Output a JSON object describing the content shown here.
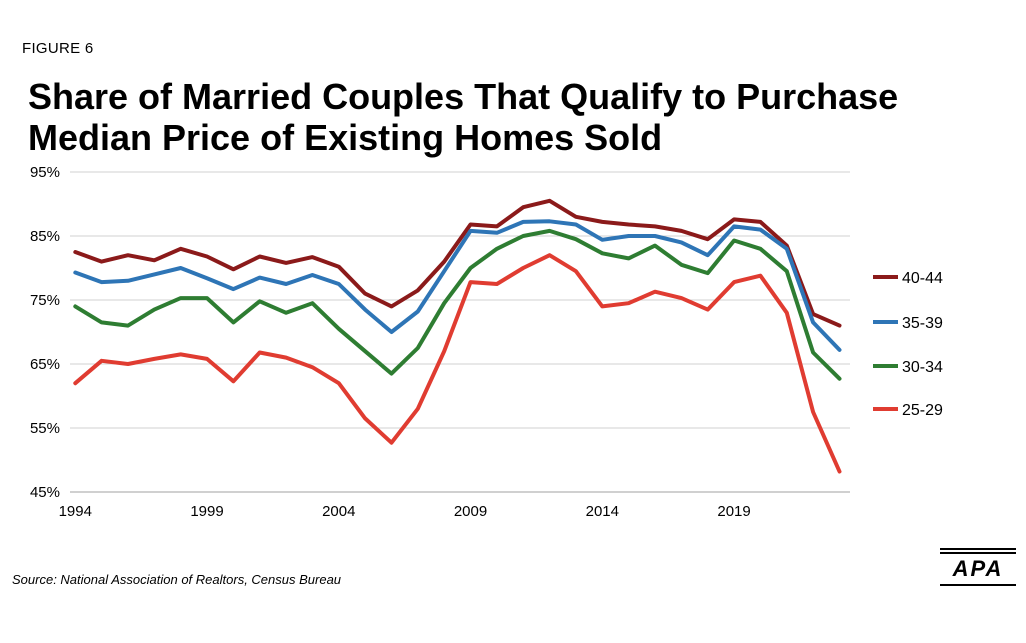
{
  "figure_label": "FIGURE 6",
  "title_line1": "Share of Married Couples That Qualify to Purchase",
  "title_line2": "Median Price of Existing Homes Sold",
  "source": "Source: National Association of Realtors, Census Bureau",
  "logo_text": "APA",
  "chart_data": {
    "type": "line",
    "title": "Share of Married Couples That Qualify to Purchase Median Price of Existing Homes Sold",
    "xlabel": "",
    "ylabel": "",
    "x": [
      1994,
      1995,
      1996,
      1997,
      1998,
      1999,
      2000,
      2001,
      2002,
      2003,
      2004,
      2005,
      2006,
      2007,
      2008,
      2009,
      2010,
      2011,
      2012,
      2013,
      2014,
      2015,
      2016,
      2017,
      2018,
      2019,
      2020,
      2021,
      2022,
      2023
    ],
    "x_ticks": [
      1994,
      1999,
      2004,
      2009,
      2014,
      2019
    ],
    "x_tick_labels": [
      "1994",
      "1999",
      "2004",
      "2009",
      "2014",
      "2019"
    ],
    "ylim": [
      45,
      95
    ],
    "y_ticks": [
      45,
      55,
      65,
      75,
      85,
      95
    ],
    "y_tick_labels": [
      "45%",
      "55%",
      "65%",
      "75%",
      "85%",
      "95%"
    ],
    "grid": "horizontal",
    "legend_position": "right",
    "series": [
      {
        "name": "40-44",
        "color": "#8b1a1a",
        "values": [
          82.5,
          81.0,
          82.0,
          81.2,
          83.0,
          81.8,
          79.8,
          81.8,
          80.8,
          81.7,
          80.2,
          76.0,
          74.0,
          76.5,
          81.0,
          86.8,
          86.5,
          89.5,
          90.5,
          88.0,
          87.2,
          86.8,
          86.5,
          85.8,
          84.5,
          87.6,
          87.2,
          83.5,
          72.8,
          71.0
        ]
      },
      {
        "name": "35-39",
        "color": "#2e75b6",
        "values": [
          79.3,
          77.8,
          78.0,
          79.0,
          80.0,
          78.4,
          76.7,
          78.5,
          77.5,
          78.9,
          77.5,
          73.5,
          70.0,
          73.2,
          79.5,
          85.8,
          85.5,
          87.2,
          87.3,
          86.8,
          84.4,
          85.0,
          85.0,
          84.0,
          82.0,
          86.5,
          86.0,
          83.0,
          71.5,
          67.2
        ]
      },
      {
        "name": "30-34",
        "color": "#2e7d32",
        "values": [
          74.0,
          71.5,
          71.0,
          73.5,
          75.3,
          75.3,
          71.5,
          74.8,
          73.0,
          74.5,
          70.5,
          67.0,
          63.5,
          67.5,
          74.5,
          80.0,
          83.0,
          85.0,
          85.8,
          84.5,
          82.3,
          81.5,
          83.5,
          80.5,
          79.2,
          84.3,
          83.0,
          79.5,
          66.8,
          62.7
        ]
      },
      {
        "name": "25-29",
        "color": "#e03c31",
        "values": [
          62.0,
          65.5,
          65.0,
          65.8,
          66.5,
          65.8,
          62.3,
          66.8,
          66.0,
          64.5,
          62.0,
          56.5,
          52.7,
          58.0,
          67.0,
          77.8,
          77.5,
          80.0,
          82.0,
          79.5,
          74.0,
          74.5,
          76.3,
          75.3,
          73.5,
          77.8,
          78.8,
          73.0,
          57.5,
          48.2
        ]
      }
    ]
  }
}
